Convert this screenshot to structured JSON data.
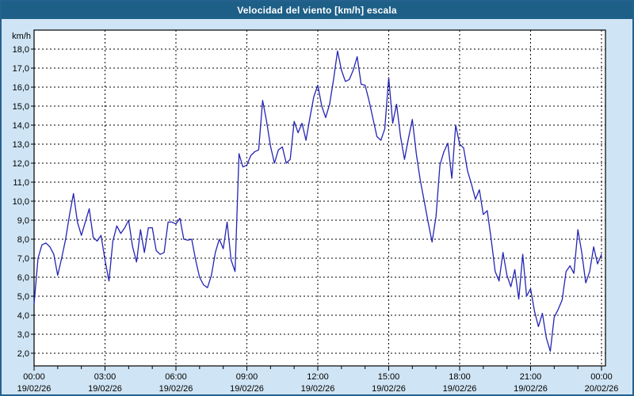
{
  "title_bar": {
    "title": "Velocidad del viento [km/h] escala",
    "bg_color": "#1d5f87",
    "text_color": "#ffffff"
  },
  "chart_data": {
    "type": "line",
    "title": "Velocidad del viento [km/h] escala",
    "ylabel": "km/h",
    "xlabel": "",
    "ylim": [
      2,
      18
    ],
    "ytick_step": 1,
    "ytick_labels": [
      "18,0",
      "17,0",
      "16,0",
      "15,0",
      "14,0",
      "13,0",
      "12,0",
      "11,0",
      "10,0",
      "9,0",
      "8,0",
      "7,0",
      "6,0",
      "5,0",
      "4,0",
      "3,0",
      "2,0"
    ],
    "x_range_hours": 24,
    "grid": "dashed",
    "legend_position": "none",
    "x_ticks": [
      {
        "time": "00:00",
        "date": "19/02/26"
      },
      {
        "time": "03:00",
        "date": "19/02/26"
      },
      {
        "time": "06:00",
        "date": "19/02/26"
      },
      {
        "time": "09:00",
        "date": "19/02/26"
      },
      {
        "time": "12:00",
        "date": "19/02/26"
      },
      {
        "time": "15:00",
        "date": "19/02/26"
      },
      {
        "time": "18:00",
        "date": "19/02/26"
      },
      {
        "time": "21:00",
        "date": "19/02/26"
      },
      {
        "time": "00:00",
        "date": "20/02/26"
      }
    ],
    "style": {
      "line_color": "#2424b4",
      "plot_bg": "#ffffff",
      "page_bg": "#cfe4f4",
      "grid_color": "#000000",
      "axis_color": "#000000"
    },
    "series": [
      {
        "name": "Velocidad del viento",
        "unit": "km/h",
        "interval_minutes": 10,
        "start_time": "00:00",
        "values": [
          4.6,
          7.0,
          7.7,
          7.8,
          7.6,
          7.2,
          6.1,
          7.0,
          8.0,
          9.3,
          10.4,
          8.9,
          8.2,
          8.9,
          9.6,
          8.1,
          7.9,
          8.2,
          6.9,
          5.8,
          7.9,
          8.7,
          8.3,
          8.6,
          9.0,
          7.6,
          6.8,
          8.5,
          7.3,
          8.6,
          8.6,
          7.4,
          7.2,
          7.3,
          8.9,
          8.9,
          8.8,
          9.1,
          8.0,
          7.95,
          8.0,
          6.9,
          6.0,
          5.6,
          5.45,
          6.1,
          7.3,
          8.0,
          7.5,
          8.9,
          6.9,
          6.3,
          12.5,
          11.8,
          11.9,
          12.4,
          12.6,
          12.7,
          15.3,
          14.2,
          12.9,
          12.0,
          12.7,
          12.85,
          12.0,
          12.2,
          14.2,
          13.6,
          14.1,
          13.2,
          14.4,
          15.5,
          16.1,
          15.0,
          14.4,
          15.1,
          16.4,
          17.9,
          16.9,
          16.3,
          16.4,
          16.9,
          17.6,
          16.15,
          16.1,
          15.3,
          14.35,
          13.4,
          13.2,
          13.8,
          16.5,
          14.1,
          15.1,
          13.4,
          12.2,
          13.3,
          14.3,
          12.5,
          11.1,
          10.0,
          8.9,
          7.85,
          9.2,
          11.9,
          12.6,
          13.05,
          11.2,
          14.0,
          13.0,
          12.8,
          11.6,
          10.9,
          10.1,
          10.6,
          9.3,
          9.5,
          8.0,
          6.3,
          5.8,
          7.3,
          6.1,
          5.5,
          6.4,
          4.85,
          7.2,
          5.0,
          5.4,
          4.2,
          3.4,
          4.1,
          2.8,
          2.1,
          3.9,
          4.3,
          4.8,
          6.3,
          6.6,
          6.2,
          8.5,
          7.3,
          5.7,
          6.3,
          7.6,
          6.7,
          7.2
        ]
      }
    ]
  }
}
